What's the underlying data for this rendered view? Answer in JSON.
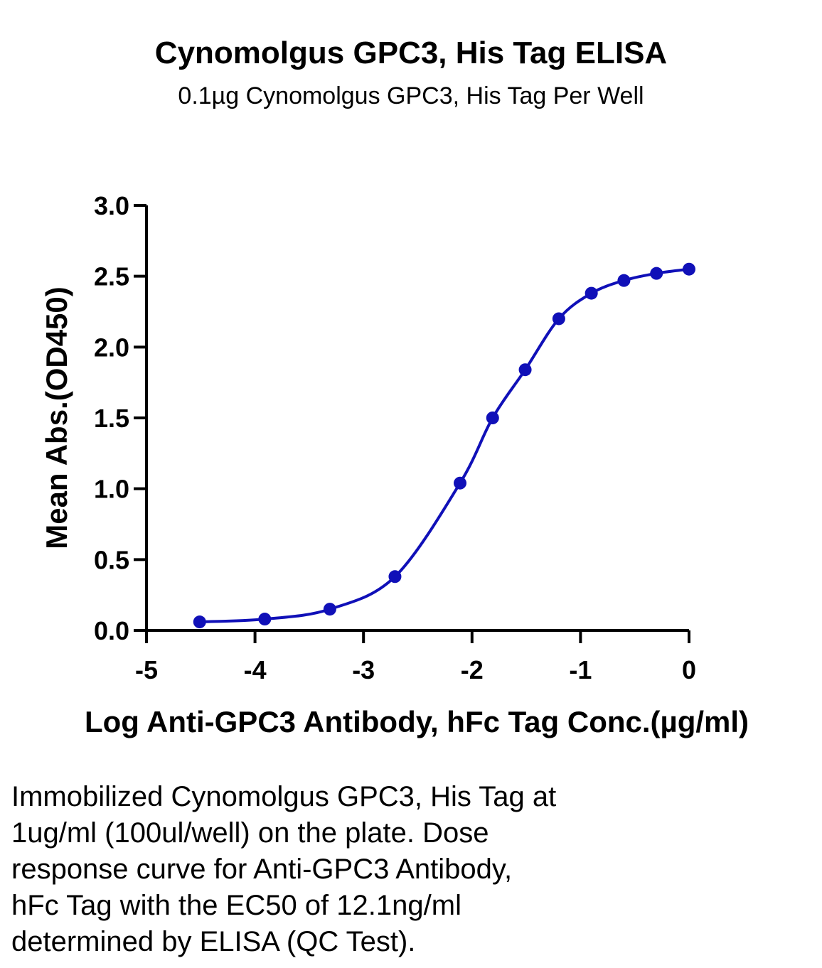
{
  "title": "Cynomolgus GPC3, His Tag ELISA",
  "subtitle": "0.1µg Cynomolgus GPC3, His Tag Per Well",
  "chart_data": {
    "type": "scatter",
    "xlabel": "Log Anti-GPC3 Antibody, hFc Tag Conc.(µg/ml)",
    "ylabel": "Mean Abs.(OD450)",
    "xlim": [
      -5,
      0
    ],
    "ylim": [
      0,
      3.0
    ],
    "x_ticks": [
      "-5",
      "-4",
      "-3",
      "-2",
      "-1",
      "0"
    ],
    "y_ticks": [
      "0.0",
      "0.5",
      "1.0",
      "1.5",
      "2.0",
      "2.5",
      "3.0"
    ],
    "grid": false,
    "series": [
      {
        "color": "#1010b8",
        "fit": "sigmoidal curve",
        "points": [
          {
            "x": -4.51,
            "y": 0.06
          },
          {
            "x": -3.91,
            "y": 0.08
          },
          {
            "x": -3.31,
            "y": 0.15
          },
          {
            "x": -2.71,
            "y": 0.38
          },
          {
            "x": -2.11,
            "y": 1.04
          },
          {
            "x": -1.81,
            "y": 1.5
          },
          {
            "x": -1.51,
            "y": 1.84
          },
          {
            "x": -1.2,
            "y": 2.2
          },
          {
            "x": -0.9,
            "y": 2.38
          },
          {
            "x": -0.6,
            "y": 2.47
          },
          {
            "x": -0.3,
            "y": 2.52
          },
          {
            "x": 0.0,
            "y": 2.55
          }
        ]
      }
    ]
  },
  "caption_lines": [
    "Immobilized Cynomolgus GPC3, His Tag at",
    "1ug/ml (100ul/well) on the plate. Dose",
    "response curve for Anti-GPC3 Antibody,",
    "hFc Tag with the EC50 of 12.1ng/ml",
    "determined by ELISA (QC Test)."
  ]
}
